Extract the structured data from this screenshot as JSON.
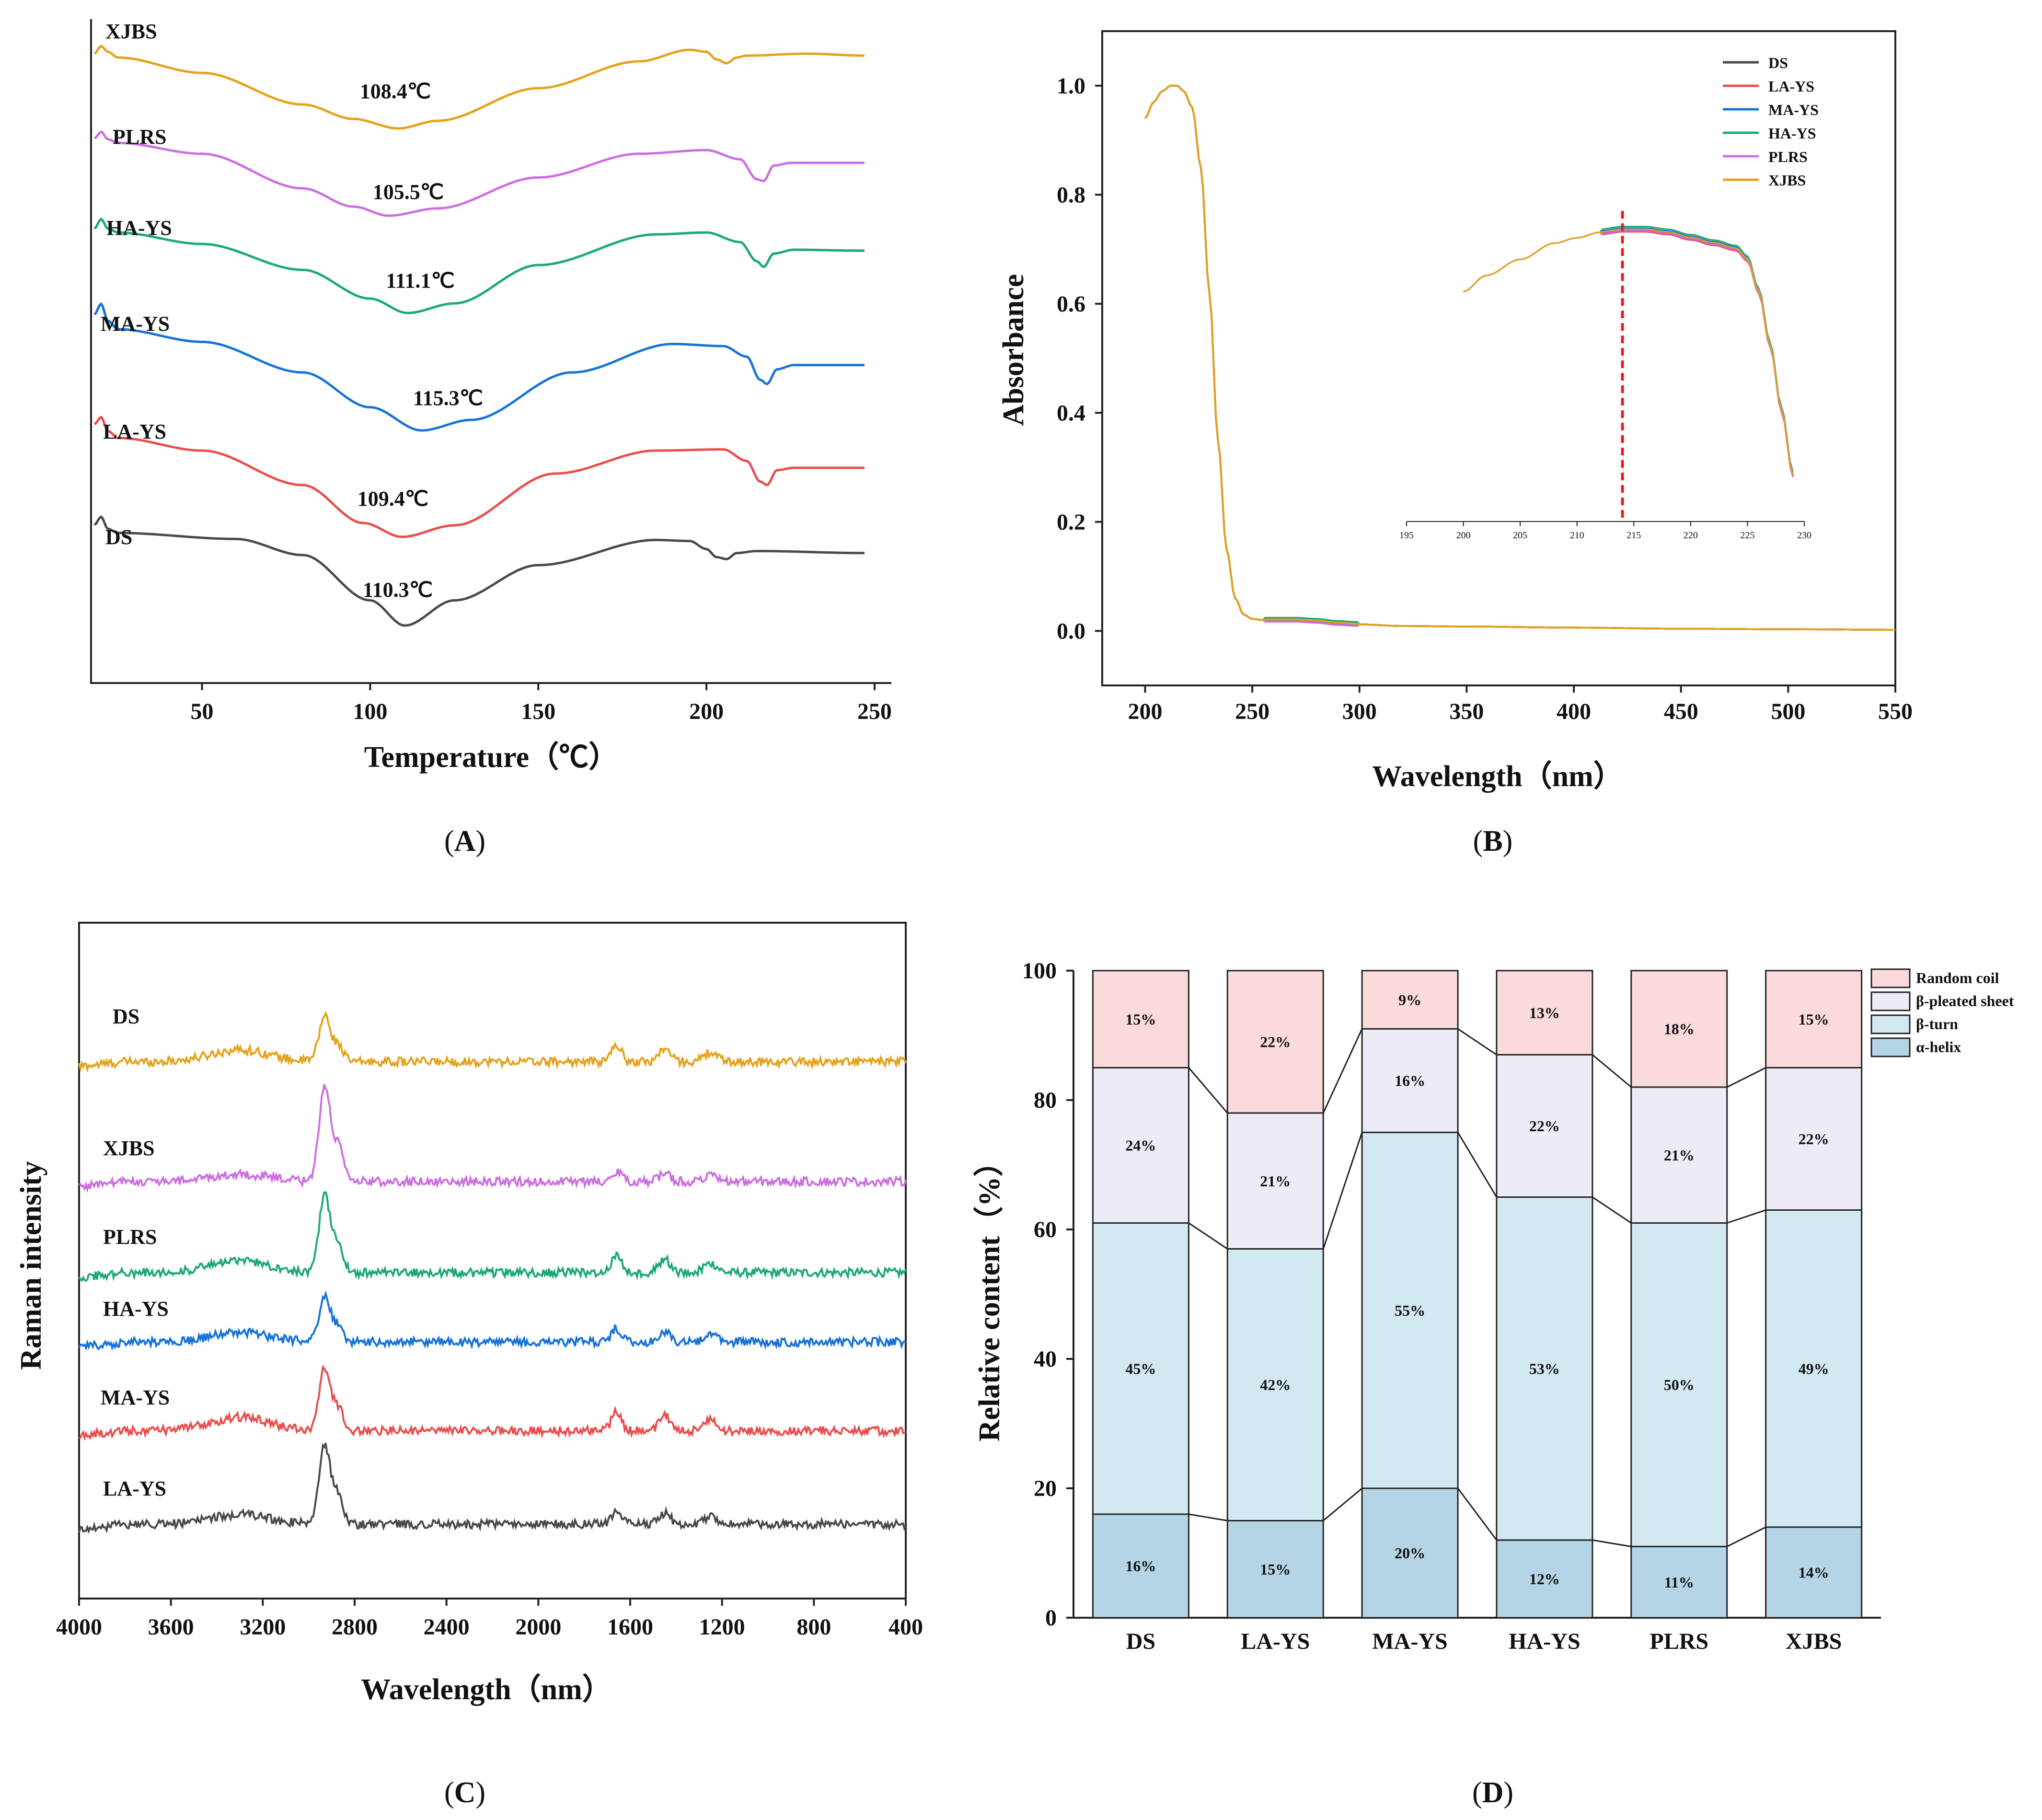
{
  "panels": {
    "A": {
      "label": "(A)",
      "label_prefix": "(",
      "label_letter": "A",
      "label_suffix": ")"
    },
    "B": {
      "label": "(B)",
      "label_prefix": "(",
      "label_letter": "B",
      "label_suffix": ")"
    },
    "C": {
      "label": "(C)",
      "label_prefix": "(",
      "label_letter": "C",
      "label_suffix": ")"
    },
    "D": {
      "label": "(D)",
      "label_prefix": "(",
      "label_letter": "D",
      "label_suffix": ")"
    }
  },
  "chart_data": [
    {
      "id": "A",
      "type": "line",
      "title": "",
      "xlabel": "Temperature（℃）",
      "ylabel": "",
      "xlim": [
        17,
        255
      ],
      "xticks": [
        50,
        100,
        150,
        200,
        250
      ],
      "yaxis_ticks_shown": false,
      "series": [
        {
          "name": "XJBS",
          "peak_temperature": 108.4,
          "peak_label": "108.4℃",
          "color": "#E5A21C",
          "x": [
            18,
            20,
            22,
            25,
            50,
            80,
            95,
            108.4,
            120,
            150,
            180,
            195,
            200,
            203,
            206,
            209,
            212,
            230,
            247
          ],
          "y": [
            0.78,
            0.86,
            0.8,
            0.74,
            0.58,
            0.25,
            0.1,
            0.0,
            0.08,
            0.42,
            0.7,
            0.82,
            0.8,
            0.72,
            0.68,
            0.74,
            0.76,
            0.78,
            0.76
          ]
        },
        {
          "name": "PLRS",
          "peak_temperature": 105.5,
          "peak_label": "105.5℃",
          "color": "#CC6FE0",
          "x": [
            18,
            20,
            22,
            25,
            50,
            80,
            95,
            105.5,
            120,
            150,
            180,
            200,
            210,
            215,
            217,
            220,
            225,
            247
          ],
          "y": [
            0.85,
            0.92,
            0.84,
            0.8,
            0.68,
            0.3,
            0.1,
            0.0,
            0.08,
            0.42,
            0.68,
            0.72,
            0.62,
            0.4,
            0.38,
            0.55,
            0.58,
            0.58
          ]
        },
        {
          "name": "HA-YS",
          "peak_temperature": 111.1,
          "peak_label": "111.1℃",
          "color": "#1DA87A",
          "x": [
            18,
            20,
            22,
            25,
            50,
            80,
            100,
            111.1,
            125,
            150,
            185,
            200,
            210,
            215,
            217,
            220,
            226,
            247
          ],
          "y": [
            0.88,
            0.98,
            0.88,
            0.84,
            0.72,
            0.45,
            0.15,
            0.0,
            0.1,
            0.5,
            0.82,
            0.84,
            0.74,
            0.54,
            0.48,
            0.62,
            0.66,
            0.65
          ]
        },
        {
          "name": "MA-YS",
          "peak_temperature": 115.3,
          "peak_label": "115.3℃",
          "color": "#1673D8",
          "x": [
            18,
            20,
            22,
            25,
            50,
            80,
            100,
            115.3,
            130,
            160,
            190,
            205,
            212,
            216,
            218,
            221,
            226,
            247
          ],
          "y": [
            1.1,
            1.2,
            1.04,
            0.96,
            0.84,
            0.55,
            0.22,
            0.0,
            0.1,
            0.55,
            0.82,
            0.8,
            0.7,
            0.48,
            0.44,
            0.58,
            0.62,
            0.62
          ]
        },
        {
          "name": "LA-YS",
          "peak_temperature": 109.4,
          "peak_label": "109.4℃",
          "color": "#EA4D4D",
          "x": [
            18,
            20,
            22,
            25,
            50,
            80,
            98,
            109.4,
            125,
            155,
            185,
            205,
            212,
            216,
            218,
            221,
            226,
            247
          ],
          "y": [
            0.98,
            1.04,
            0.92,
            0.86,
            0.75,
            0.45,
            0.12,
            0.0,
            0.1,
            0.55,
            0.75,
            0.76,
            0.66,
            0.48,
            0.45,
            0.58,
            0.6,
            0.6
          ]
        },
        {
          "name": "DS",
          "peak_temperature": 110.3,
          "peak_label": "110.3℃",
          "color": "#4A4A4A",
          "x": [
            18,
            20,
            22,
            25,
            60,
            80,
            100,
            110.3,
            125,
            150,
            185,
            195,
            200,
            203,
            206,
            209,
            215,
            247
          ],
          "y": [
            1.0,
            1.08,
            0.96,
            0.92,
            0.86,
            0.7,
            0.25,
            0.0,
            0.25,
            0.6,
            0.85,
            0.84,
            0.76,
            0.68,
            0.66,
            0.72,
            0.74,
            0.72
          ]
        }
      ]
    },
    {
      "id": "B",
      "type": "line",
      "title": "",
      "xlabel": "Wavelength（nm）",
      "ylabel": "Absorbance",
      "xlim": [
        180,
        550
      ],
      "ylim": [
        -0.1,
        1.1
      ],
      "xticks": [
        200,
        250,
        300,
        350,
        400,
        450,
        500,
        550
      ],
      "yticks": [
        0.0,
        0.2,
        0.4,
        0.6,
        0.8,
        1.0
      ],
      "ytick_labels": [
        "0.0",
        "0.2",
        "0.4",
        "0.6",
        "0.8",
        "1.0"
      ],
      "legend_position": "top-right",
      "series": [
        {
          "name": "DS",
          "color": "#4A4A4A"
        },
        {
          "name": "LA-YS",
          "color": "#EA4D4D"
        },
        {
          "name": "MA-YS",
          "color": "#1673D8"
        },
        {
          "name": "HA-YS",
          "color": "#1DA87A"
        },
        {
          "name": "PLRS",
          "color": "#CC6FE0"
        },
        {
          "name": "XJBS",
          "color": "#E5A21C"
        }
      ],
      "x": [
        200,
        204,
        208,
        212,
        215,
        218,
        222,
        226,
        230,
        234,
        238,
        242,
        246,
        250,
        255,
        260,
        270,
        280,
        290,
        300,
        320,
        350,
        400,
        450,
        500,
        550
      ],
      "y": [
        0.94,
        0.97,
        0.99,
        1.0,
        1.0,
        0.99,
        0.96,
        0.85,
        0.62,
        0.35,
        0.15,
        0.06,
        0.03,
        0.022,
        0.02,
        0.02,
        0.02,
        0.018,
        0.014,
        0.012,
        0.009,
        0.008,
        0.006,
        0.004,
        0.003,
        0.002
      ],
      "inset": {
        "xlim": [
          195,
          230
        ],
        "xticks": [
          195,
          200,
          205,
          210,
          215,
          220,
          225,
          230
        ],
        "marker_x": 214,
        "x": [
          200,
          202,
          205,
          208,
          210,
          212,
          214,
          216,
          218,
          220,
          222,
          224,
          225,
          226,
          227,
          228,
          229
        ],
        "y": [
          0.6,
          0.63,
          0.66,
          0.69,
          0.7,
          0.71,
          0.715,
          0.715,
          0.71,
          0.7,
          0.69,
          0.68,
          0.66,
          0.6,
          0.5,
          0.38,
          0.26
        ]
      }
    },
    {
      "id": "C",
      "type": "line",
      "title": "",
      "xlabel": "Wavelength（nm）",
      "ylabel": "Raman intensity",
      "xlim": [
        4000,
        400
      ],
      "xticks": [
        4000,
        3600,
        3200,
        2800,
        2400,
        2000,
        1600,
        1200,
        800,
        400
      ],
      "yaxis_ticks_shown": false,
      "series": [
        {
          "name": "DS",
          "color": "#E5A21C",
          "main_peak": 2930
        },
        {
          "name": "XJBS",
          "color": "#CC6FE0",
          "main_peak": 2930
        },
        {
          "name": "PLRS",
          "color": "#1DA87A",
          "main_peak": 2930
        },
        {
          "name": "HA-YS",
          "color": "#1673D8",
          "main_peak": 2930
        },
        {
          "name": "MA-YS",
          "color": "#EA4D4D",
          "main_peak": 2930
        },
        {
          "name": "LA-YS",
          "color": "#4A4A4A",
          "main_peak": 2930
        }
      ]
    },
    {
      "id": "D",
      "type": "bar",
      "stacked": true,
      "title": "",
      "xlabel": "",
      "ylabel": "Relative content（%）",
      "ylim": [
        0,
        100
      ],
      "yticks": [
        0,
        20,
        40,
        60,
        80,
        100
      ],
      "categories": [
        "DS",
        "LA-YS",
        "MA-YS",
        "HA-YS",
        "PLRS",
        "XJBS"
      ],
      "legend_position": "top-right",
      "series": [
        {
          "name": "α-helix",
          "color": "#B4D5E6",
          "values": [
            16,
            15,
            20,
            12,
            11,
            14
          ],
          "labels": [
            "16%",
            "15%",
            "20%",
            "12%",
            "11%",
            "14%"
          ]
        },
        {
          "name": "β-turn",
          "color": "#D3E9F1",
          "values": [
            45,
            42,
            55,
            53,
            50,
            49
          ],
          "labels": [
            "45%",
            "42%",
            "55%",
            "53%",
            "50%",
            "49%"
          ]
        },
        {
          "name": "β-pleated sheet",
          "color": "#ECEBF6",
          "values": [
            24,
            21,
            16,
            22,
            21,
            22
          ],
          "labels": [
            "24%",
            "21%",
            "16%",
            "22%",
            "21%",
            "22%"
          ]
        },
        {
          "name": "Random coil",
          "color": "#FADADB",
          "values": [
            15,
            22,
            9,
            13,
            18,
            15
          ],
          "labels": [
            "15%",
            "22%",
            "9%",
            "13%",
            "18%",
            "15%"
          ]
        }
      ],
      "legend_order": [
        "Random coil",
        "β-pleated sheet",
        "β-turn",
        "α-helix"
      ]
    }
  ]
}
